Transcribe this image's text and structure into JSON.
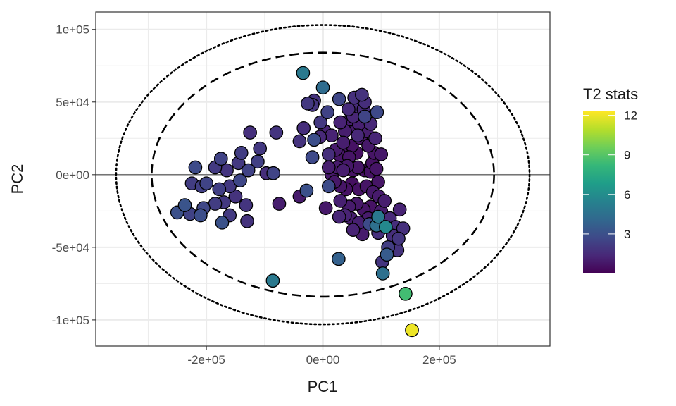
{
  "chart_data": {
    "type": "scatter",
    "title": "",
    "xlabel": "PC1",
    "ylabel": "PC2",
    "xlim": [
      -390000,
      390000
    ],
    "ylim": [
      -118000,
      112000
    ],
    "x_ticks": [
      {
        "value": -200000,
        "label": "-2e+05"
      },
      {
        "value": 0,
        "label": "0e+00"
      },
      {
        "value": 200000,
        "label": "2e+05"
      }
    ],
    "y_ticks": [
      {
        "value": 100000,
        "label": "1e+05"
      },
      {
        "value": 50000,
        "label": "5e+04"
      },
      {
        "value": 0,
        "label": "0e+00"
      },
      {
        "value": -50000,
        "label": "-5e+04"
      },
      {
        "value": -100000,
        "label": "-1e+05"
      }
    ],
    "grid": true,
    "reference_lines": {
      "x": 0,
      "y": 0
    },
    "ellipses": [
      {
        "style": "dashed",
        "rx": 294000,
        "ry": 84000
      },
      {
        "style": "dotted",
        "rx": 355000,
        "ry": 103000
      }
    ],
    "color_scale": {
      "title": "T2 stats",
      "min": 0,
      "max": 12.3,
      "colors": [
        "#440154",
        "#482878",
        "#3e4a89",
        "#31688e",
        "#26828e",
        "#1f9e89",
        "#35b779",
        "#6ece58",
        "#b5de2b",
        "#fde725"
      ],
      "ticks": [
        {
          "value": 3,
          "label": "3"
        },
        {
          "value": 6,
          "label": "6"
        },
        {
          "value": 9,
          "label": "9"
        },
        {
          "value": 12,
          "label": "12"
        }
      ]
    },
    "points": [
      {
        "x": 153000,
        "y": -107000,
        "t2": 12.0
      },
      {
        "x": 142000,
        "y": -82000,
        "t2": 8.5
      },
      {
        "x": -86000,
        "y": -73000,
        "t2": 5.0
      },
      {
        "x": 103000,
        "y": -68000,
        "t2": 4.5
      },
      {
        "x": -34000,
        "y": 70000,
        "t2": 5.0
      },
      {
        "x": 0,
        "y": 60000,
        "t2": 4.3
      },
      {
        "x": 27000,
        "y": -58000,
        "t2": 3.8
      },
      {
        "x": 110000,
        "y": -55000,
        "t2": 3.5
      },
      {
        "x": 108000,
        "y": -36000,
        "t2": 5.8
      },
      {
        "x": 95000,
        "y": -29000,
        "t2": 5.0
      },
      {
        "x": 92000,
        "y": -35000,
        "t2": 4.5
      },
      {
        "x": -250000,
        "y": -26000,
        "t2": 3.0
      },
      {
        "x": -237000,
        "y": -21000,
        "t2": 3.2
      },
      {
        "x": -210000,
        "y": -28000,
        "t2": 2.9
      },
      {
        "x": -173000,
        "y": -33000,
        "t2": 3.1
      },
      {
        "x": -219000,
        "y": 5000,
        "t2": 2.8
      },
      {
        "x": -28000,
        "y": -11000,
        "t2": 3.0
      },
      {
        "x": -85000,
        "y": 1000,
        "t2": 2.5
      },
      {
        "x": 10000,
        "y": -8000,
        "t2": 2.8
      },
      {
        "x": -18000,
        "y": 12000,
        "t2": 2.7
      },
      {
        "x": -15000,
        "y": 24000,
        "t2": 2.9
      },
      {
        "x": 28000,
        "y": 52000,
        "t2": 2.6
      },
      {
        "x": 93000,
        "y": 43000,
        "t2": 2.7
      },
      {
        "x": 8000,
        "y": 43000,
        "t2": 2.4
      },
      {
        "x": 72000,
        "y": 40000,
        "t2": 2.5
      },
      {
        "x": -26000,
        "y": 49000,
        "t2": 2.0
      },
      {
        "x": -15000,
        "y": 51000,
        "t2": 1.8
      },
      {
        "x": -18000,
        "y": 48000,
        "t2": 1.9
      },
      {
        "x": 67000,
        "y": 55000,
        "t2": 1.8
      },
      {
        "x": 54000,
        "y": 53000,
        "t2": 1.7
      },
      {
        "x": 60000,
        "y": 47000,
        "t2": 1.5
      },
      {
        "x": 72000,
        "y": 50000,
        "t2": 1.6
      },
      {
        "x": 44000,
        "y": 45000,
        "t2": 1.5
      },
      {
        "x": 52000,
        "y": 40000,
        "t2": 1.3
      },
      {
        "x": 82000,
        "y": 35000,
        "t2": 1.4
      },
      {
        "x": -4000,
        "y": 36000,
        "t2": 2.0
      },
      {
        "x": 3000,
        "y": 30000,
        "t2": 1.2
      },
      {
        "x": 30000,
        "y": 36000,
        "t2": 1.2
      },
      {
        "x": 38000,
        "y": 30000,
        "t2": 1.0
      },
      {
        "x": 48000,
        "y": 33000,
        "t2": 0.9
      },
      {
        "x": 62000,
        "y": 35000,
        "t2": 1.1
      },
      {
        "x": 75000,
        "y": 30000,
        "t2": 1.0
      },
      {
        "x": 90000,
        "y": 25000,
        "t2": 1.3
      },
      {
        "x": -33000,
        "y": 32000,
        "t2": 1.6
      },
      {
        "x": -40000,
        "y": 23000,
        "t2": 1.8
      },
      {
        "x": -80000,
        "y": 29000,
        "t2": 1.9
      },
      {
        "x": -125000,
        "y": 29000,
        "t2": 1.7
      },
      {
        "x": -108000,
        "y": 18000,
        "t2": 2.0
      },
      {
        "x": -140000,
        "y": 15000,
        "t2": 2.2
      },
      {
        "x": -145000,
        "y": 8000,
        "t2": 2.0
      },
      {
        "x": -175000,
        "y": 11000,
        "t2": 2.4
      },
      {
        "x": -112000,
        "y": 9000,
        "t2": 2.3
      },
      {
        "x": -165000,
        "y": 3000,
        "t2": 1.9
      },
      {
        "x": -185000,
        "y": 5000,
        "t2": 2.1
      },
      {
        "x": -128000,
        "y": 3000,
        "t2": 2.4
      },
      {
        "x": -97000,
        "y": 1000,
        "t2": 1.6
      },
      {
        "x": -142000,
        "y": -4000,
        "t2": 2.6
      },
      {
        "x": -200000,
        "y": -6000,
        "t2": 2.5
      },
      {
        "x": -225000,
        "y": -6000,
        "t2": 2.2
      },
      {
        "x": -208000,
        "y": -8000,
        "t2": 2.3
      },
      {
        "x": -178000,
        "y": -10000,
        "t2": 2.3
      },
      {
        "x": -160000,
        "y": -8000,
        "t2": 2.0
      },
      {
        "x": -185000,
        "y": -20000,
        "t2": 2.2
      },
      {
        "x": -170000,
        "y": -19000,
        "t2": 2.0
      },
      {
        "x": -150000,
        "y": -15000,
        "t2": 1.8
      },
      {
        "x": -132000,
        "y": -21000,
        "t2": 1.9
      },
      {
        "x": -205000,
        "y": -23000,
        "t2": 2.6
      },
      {
        "x": -228000,
        "y": -27000,
        "t2": 2.4
      },
      {
        "x": -130000,
        "y": -32000,
        "t2": 1.8
      },
      {
        "x": -160000,
        "y": -28000,
        "t2": 2.1
      },
      {
        "x": -75000,
        "y": -20000,
        "t2": 1.0
      },
      {
        "x": -40000,
        "y": -15000,
        "t2": 0.9
      },
      {
        "x": 5000,
        "y": -23000,
        "t2": 0.8
      },
      {
        "x": 10000,
        "y": 5000,
        "t2": 1.0
      },
      {
        "x": 15000,
        "y": 0,
        "t2": 0.8
      },
      {
        "x": 22000,
        "y": 17000,
        "t2": 0.9
      },
      {
        "x": 30000,
        "y": 13000,
        "t2": 0.7
      },
      {
        "x": 38000,
        "y": 17000,
        "t2": 0.6
      },
      {
        "x": 45000,
        "y": 12000,
        "t2": 0.7
      },
      {
        "x": 50000,
        "y": 20000,
        "t2": 0.6
      },
      {
        "x": 58000,
        "y": 15000,
        "t2": 0.5
      },
      {
        "x": 65000,
        "y": 25000,
        "t2": 0.7
      },
      {
        "x": 78000,
        "y": 20000,
        "t2": 0.8
      },
      {
        "x": 88000,
        "y": 15000,
        "t2": 0.7
      },
      {
        "x": 100000,
        "y": 14000,
        "t2": 0.8
      },
      {
        "x": 25000,
        "y": 5000,
        "t2": 0.9
      },
      {
        "x": 35000,
        "y": 3000,
        "t2": 1.0
      },
      {
        "x": 42000,
        "y": 6000,
        "t2": 0.8
      },
      {
        "x": 52000,
        "y": 3000,
        "t2": 0.6
      },
      {
        "x": 60000,
        "y": 5000,
        "t2": 0.7
      },
      {
        "x": 72000,
        "y": 3000,
        "t2": 0.5
      },
      {
        "x": 82000,
        "y": 2000,
        "t2": 0.6
      },
      {
        "x": 92000,
        "y": 4000,
        "t2": 0.7
      },
      {
        "x": 20000,
        "y": -5000,
        "t2": 0.8
      },
      {
        "x": 30000,
        "y": -8000,
        "t2": 0.7
      },
      {
        "x": 40000,
        "y": -10000,
        "t2": 0.6
      },
      {
        "x": 50000,
        "y": -6000,
        "t2": 0.5
      },
      {
        "x": 62000,
        "y": -10000,
        "t2": 0.6
      },
      {
        "x": 75000,
        "y": -8000,
        "t2": 0.7
      },
      {
        "x": 86000,
        "y": -12000,
        "t2": 0.8
      },
      {
        "x": 96000,
        "y": -15000,
        "t2": 0.9
      },
      {
        "x": 106000,
        "y": -18000,
        "t2": 1.0
      },
      {
        "x": 30000,
        "y": -18000,
        "t2": 1.1
      },
      {
        "x": 45000,
        "y": -22000,
        "t2": 0.9
      },
      {
        "x": 58000,
        "y": -20000,
        "t2": 0.8
      },
      {
        "x": 70000,
        "y": -24000,
        "t2": 0.7
      },
      {
        "x": 82000,
        "y": -22000,
        "t2": 0.6
      },
      {
        "x": 38000,
        "y": -28000,
        "t2": 1.2
      },
      {
        "x": 48000,
        "y": -30000,
        "t2": 1.0
      },
      {
        "x": 62000,
        "y": -33000,
        "t2": 1.1
      },
      {
        "x": 78000,
        "y": -30000,
        "t2": 0.9
      },
      {
        "x": 28000,
        "y": -29000,
        "t2": 1.3
      },
      {
        "x": 52000,
        "y": -38000,
        "t2": 1.2
      },
      {
        "x": 68000,
        "y": -41000,
        "t2": 0.9
      },
      {
        "x": 80000,
        "y": -34000,
        "t2": 2.8
      },
      {
        "x": 115000,
        "y": -30000,
        "t2": 1.4
      },
      {
        "x": 125000,
        "y": -36000,
        "t2": 1.6
      },
      {
        "x": 132000,
        "y": -24000,
        "t2": 1.2
      },
      {
        "x": 120000,
        "y": -42000,
        "t2": 1.6
      },
      {
        "x": 130000,
        "y": -44000,
        "t2": 1.9
      },
      {
        "x": 138000,
        "y": -37000,
        "t2": 1.7
      },
      {
        "x": 128000,
        "y": -52000,
        "t2": 1.8
      },
      {
        "x": 112000,
        "y": -50000,
        "t2": 2.2
      },
      {
        "x": 102000,
        "y": -60000,
        "t2": 1.9
      },
      {
        "x": 95000,
        "y": -40000,
        "t2": 1.7
      },
      {
        "x": 10000,
        "y": 14000,
        "t2": 1.6
      },
      {
        "x": -5000,
        "y": 26000,
        "t2": 1.4
      },
      {
        "x": 15000,
        "y": 27000,
        "t2": 1.2
      },
      {
        "x": 35000,
        "y": 22000,
        "t2": 1.0
      },
      {
        "x": 60000,
        "y": 27000,
        "t2": 1.4
      },
      {
        "x": 70000,
        "y": 45000,
        "t2": 1.5
      },
      {
        "x": 48000,
        "y": 38000,
        "t2": 1.0
      },
      {
        "x": 85000,
        "y": 8000,
        "t2": 0.6
      },
      {
        "x": 95000,
        "y": -5000,
        "t2": 0.7
      },
      {
        "x": 100000,
        "y": -25000,
        "t2": 0.9
      },
      {
        "x": 105000,
        "y": -32000,
        "t2": 1.1
      }
    ]
  }
}
